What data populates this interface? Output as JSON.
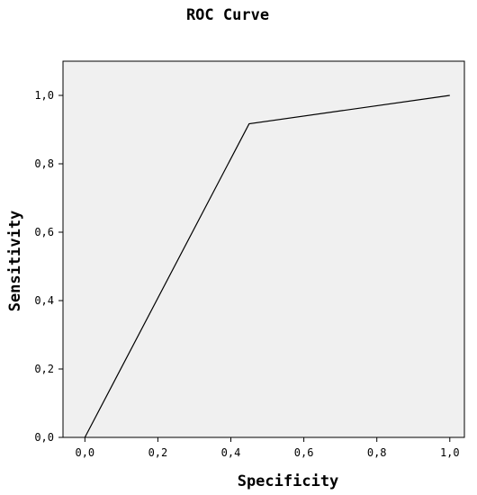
{
  "chart_data": {
    "type": "line",
    "title": "ROC Curve",
    "xlabel": "Specificity",
    "ylabel": "Sensitivity",
    "xlim": [
      -0.06,
      1.04
    ],
    "ylim": [
      0.0,
      1.1
    ],
    "x_ticks": [
      0.0,
      0.2,
      0.4,
      0.6,
      0.8,
      1.0
    ],
    "x_tick_labels": [
      "0,0",
      "0,2",
      "0,4",
      "0,6",
      "0,8",
      "1,0"
    ],
    "y_ticks": [
      0.0,
      0.2,
      0.4,
      0.6,
      0.8,
      1.0
    ],
    "y_tick_labels": [
      "0,0",
      "0,2",
      "0,4",
      "0,6",
      "0,8",
      "1,0"
    ],
    "grid": false,
    "plot_background": "#f0f0f0",
    "line_color": "#000000",
    "series": [
      {
        "x": [
          0.0,
          0.45,
          1.0
        ],
        "y": [
          0.0,
          0.917,
          1.0
        ]
      }
    ]
  }
}
